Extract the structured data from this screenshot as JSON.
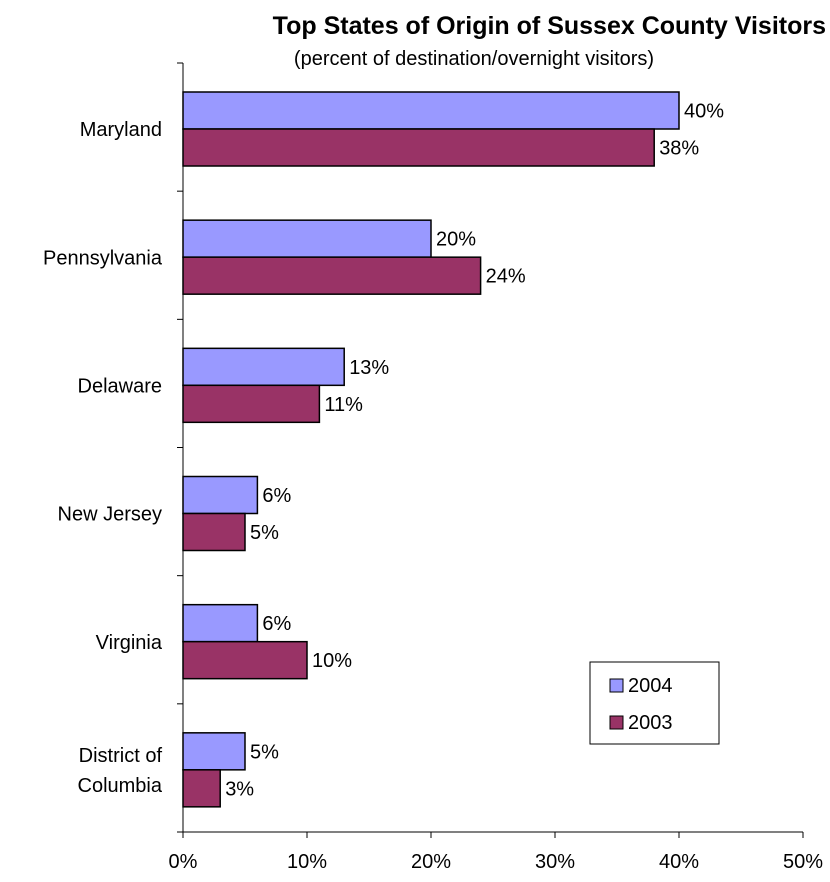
{
  "chart_data": {
    "type": "bar",
    "orientation": "horizontal",
    "title": "Top States of Origin of Sussex County Visitors",
    "subtitle": "(percent of destination/overnight visitors)",
    "xlabel": "",
    "ylabel": "",
    "xlim": [
      0,
      50
    ],
    "x_ticks": [
      "0%",
      "10%",
      "20%",
      "30%",
      "40%",
      "50%"
    ],
    "categories": [
      [
        "Maryland"
      ],
      [
        "Pennsylvania"
      ],
      [
        "Delaware"
      ],
      [
        "New Jersey"
      ],
      [
        "Virginia"
      ],
      [
        "District of",
        "Columbia"
      ]
    ],
    "series": [
      {
        "name": "2004",
        "color": "#9999FF",
        "values": [
          40,
          20,
          13,
          6,
          6,
          5
        ],
        "labels": [
          "40%",
          "20%",
          "13%",
          "6%",
          "6%",
          "5%"
        ]
      },
      {
        "name": "2003",
        "color": "#993366",
        "values": [
          38,
          24,
          11,
          5,
          10,
          3
        ],
        "labels": [
          "38%",
          "24%",
          "11%",
          "5%",
          "10%",
          "3%"
        ]
      }
    ],
    "grid": false,
    "legend_position": "bottom-right"
  }
}
